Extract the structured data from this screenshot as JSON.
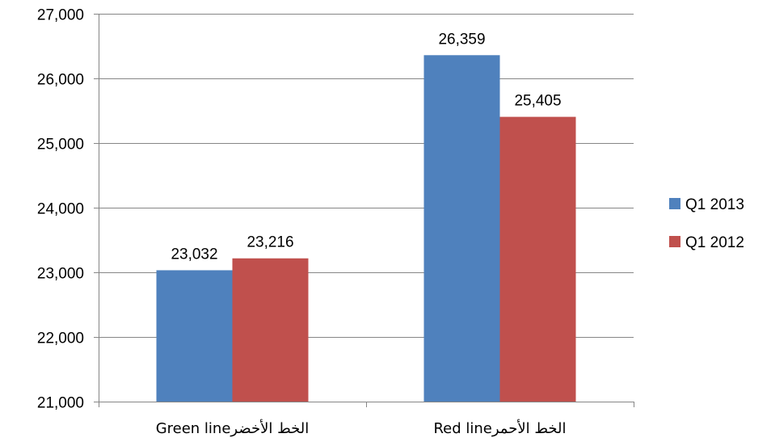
{
  "chart_data": {
    "type": "bar",
    "categories": [
      "Green lineالخط الأخضر",
      "Red lineالخط الأحمر"
    ],
    "series": [
      {
        "name": "Q1 2013",
        "values": [
          23032,
          26359
        ],
        "color": "#4F81BD"
      },
      {
        "name": "Q1 2012",
        "values": [
          23216,
          25405
        ],
        "color": "#C0504D"
      }
    ],
    "data_labels": [
      [
        "23,032",
        "26,359"
      ],
      [
        "23,216",
        "25,405"
      ]
    ],
    "ylim": [
      21000,
      27000
    ],
    "yticks": [
      21000,
      22000,
      23000,
      24000,
      25000,
      26000,
      27000
    ],
    "ytick_labels": [
      "21,000",
      "22,000",
      "23,000",
      "24,000",
      "25,000",
      "26,000",
      "27,000"
    ],
    "grid": true,
    "legend_position": "right",
    "title": "",
    "xlabel": "",
    "ylabel": ""
  }
}
